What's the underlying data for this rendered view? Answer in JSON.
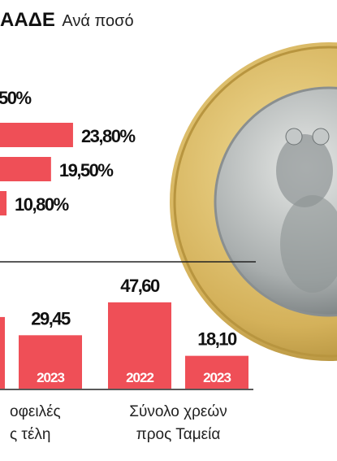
{
  "title": {
    "bold": "ΑΑΔΕ",
    "rest": "Ανά ποσό"
  },
  "chart_data": [
    {
      "type": "hbar",
      "cropped_label": "50%",
      "values": [
        23.8,
        19.5,
        10.8
      ],
      "value_labels": [
        "23,80%",
        "19,50%",
        "10,80%"
      ],
      "color": "#ef4f57"
    },
    {
      "type": "bar",
      "color": "#ef4f57",
      "groups": [
        {
          "category": [
            "οφειλές",
            "ς τέλη"
          ],
          "bars": [
            {
              "value": 39.5,
              "year": null
            },
            {
              "value": 29.45,
              "value_label": "29,45",
              "year": "2023"
            }
          ]
        },
        {
          "category": [
            "Σύνολο χρεών",
            "προς Ταμεία"
          ],
          "bars": [
            {
              "value": 47.6,
              "value_label": "47,60",
              "year": "2022"
            },
            {
              "value": 18.1,
              "value_label": "18,10",
              "year": "2023"
            }
          ]
        }
      ]
    }
  ]
}
